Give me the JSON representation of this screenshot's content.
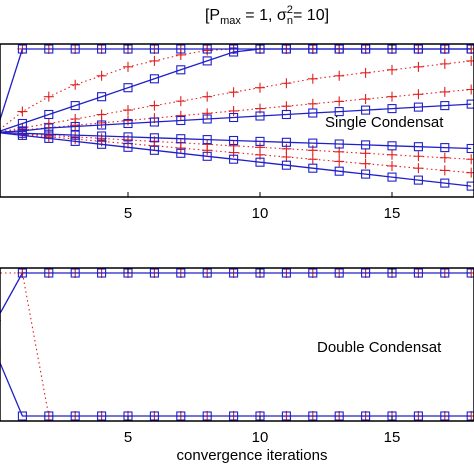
{
  "chart_data": [
    {
      "type": "line",
      "title_parts": {
        "open": "[P",
        "sub1": "max",
        "mid": " = 1, σ",
        "sup": "2",
        "sub2": "n",
        "close": "= 10]"
      },
      "annotation": "Single Condensat",
      "xlabel": "",
      "ylabel": "",
      "xticks": [
        5,
        10,
        15
      ],
      "xlim": [
        0,
        18
      ],
      "ylim": [
        0,
        1
      ],
      "grid": false,
      "series": [
        {
          "style": "blue-square-solid",
          "x": [
            0,
            1,
            2,
            3,
            4,
            5,
            6,
            7,
            8,
            9,
            10,
            11,
            12,
            13,
            14,
            15,
            16,
            17,
            18
          ],
          "y": [
            0.42,
            0.98,
            0.98,
            0.98,
            0.98,
            0.98,
            0.98,
            0.98,
            0.98,
            0.98,
            0.98,
            0.98,
            0.98,
            0.98,
            0.98,
            0.98,
            0.98,
            0.98,
            0.98
          ]
        },
        {
          "style": "blue-square-solid",
          "x": [
            0,
            1,
            2,
            3,
            4,
            5,
            6,
            7,
            8,
            9,
            10,
            11,
            12,
            13,
            14,
            15,
            16,
            17,
            18
          ],
          "y": [
            0.42,
            0.48,
            0.54,
            0.6,
            0.66,
            0.72,
            0.78,
            0.84,
            0.9,
            0.96,
            0.98,
            0.98,
            0.98,
            0.98,
            0.98,
            0.98,
            0.98,
            0.98,
            0.98
          ]
        },
        {
          "style": "blue-square-solid",
          "x": [
            0,
            1,
            2,
            3,
            4,
            5,
            6,
            7,
            8,
            9,
            10,
            11,
            12,
            13,
            14,
            15,
            16,
            17,
            18
          ],
          "y": [
            0.42,
            0.43,
            0.45,
            0.46,
            0.47,
            0.48,
            0.49,
            0.5,
            0.51,
            0.52,
            0.53,
            0.54,
            0.55,
            0.56,
            0.57,
            0.58,
            0.59,
            0.6,
            0.61
          ]
        },
        {
          "style": "blue-square-solid",
          "x": [
            0,
            1,
            2,
            3,
            4,
            5,
            6,
            7,
            8,
            9,
            10,
            11,
            12,
            13,
            14,
            15,
            16,
            17,
            18
          ],
          "y": [
            0.42,
            0.414,
            0.408,
            0.402,
            0.396,
            0.39,
            0.384,
            0.378,
            0.372,
            0.366,
            0.36,
            0.354,
            0.348,
            0.342,
            0.336,
            0.33,
            0.324,
            0.318,
            0.312
          ]
        },
        {
          "style": "blue-square-solid",
          "x": [
            0,
            1,
            2,
            3,
            4,
            5,
            6,
            7,
            8,
            9,
            10,
            11,
            12,
            13,
            14,
            15,
            16,
            17,
            18
          ],
          "y": [
            0.42,
            0.4,
            0.38,
            0.36,
            0.34,
            0.32,
            0.3,
            0.28,
            0.26,
            0.24,
            0.22,
            0.2,
            0.18,
            0.16,
            0.14,
            0.12,
            0.1,
            0.08,
            0.06
          ]
        },
        {
          "style": "red-plus-dotted",
          "x": [
            0,
            1,
            2,
            3,
            4,
            5,
            6,
            7,
            8,
            9,
            10,
            11,
            12,
            13,
            14,
            15,
            16,
            17,
            18
          ],
          "y": [
            0.42,
            0.98,
            0.98,
            0.98,
            0.98,
            0.98,
            0.98,
            0.98,
            0.98,
            0.98,
            0.98,
            0.98,
            0.98,
            0.98,
            0.98,
            0.98,
            0.98,
            0.98,
            0.98
          ]
        },
        {
          "style": "red-plus-dotted",
          "x": [
            0,
            1,
            2,
            3,
            4,
            5,
            6,
            7,
            8,
            9,
            10,
            11,
            12,
            13,
            14,
            15,
            16,
            17,
            18
          ],
          "y": [
            0.42,
            0.56,
            0.66,
            0.74,
            0.8,
            0.86,
            0.9,
            0.94,
            0.97,
            0.98,
            0.98,
            0.98,
            0.98,
            0.98,
            0.98,
            0.98,
            0.98,
            0.98,
            0.98
          ]
        },
        {
          "style": "red-plus-dotted",
          "x": [
            0,
            1,
            2,
            3,
            4,
            5,
            6,
            7,
            8,
            9,
            10,
            11,
            12,
            13,
            14,
            15,
            16,
            17,
            18
          ],
          "y": [
            0.42,
            0.45,
            0.48,
            0.51,
            0.54,
            0.57,
            0.6,
            0.63,
            0.66,
            0.69,
            0.72,
            0.75,
            0.78,
            0.8,
            0.82,
            0.84,
            0.86,
            0.88,
            0.9
          ]
        },
        {
          "style": "red-plus-dotted",
          "x": [
            0,
            1,
            2,
            3,
            4,
            5,
            6,
            7,
            8,
            9,
            10,
            11,
            12,
            13,
            14,
            15,
            16,
            17,
            18
          ],
          "y": [
            0.42,
            0.436,
            0.452,
            0.468,
            0.484,
            0.5,
            0.516,
            0.532,
            0.548,
            0.564,
            0.58,
            0.596,
            0.612,
            0.628,
            0.644,
            0.66,
            0.676,
            0.692,
            0.708
          ]
        },
        {
          "style": "red-plus-dotted",
          "x": [
            0,
            1,
            2,
            3,
            4,
            5,
            6,
            7,
            8,
            9,
            10,
            11,
            12,
            13,
            14,
            15,
            16,
            17,
            18
          ],
          "y": [
            0.42,
            0.41,
            0.4,
            0.39,
            0.38,
            0.37,
            0.36,
            0.35,
            0.34,
            0.33,
            0.32,
            0.31,
            0.3,
            0.29,
            0.28,
            0.27,
            0.26,
            0.25,
            0.24
          ]
        },
        {
          "style": "red-plus-dotted",
          "x": [
            0,
            1,
            2,
            3,
            4,
            5,
            6,
            7,
            8,
            9,
            10,
            11,
            12,
            13,
            14,
            15,
            16,
            17,
            18
          ],
          "y": [
            0.42,
            0.405,
            0.39,
            0.375,
            0.36,
            0.345,
            0.33,
            0.315,
            0.3,
            0.285,
            0.27,
            0.255,
            0.24,
            0.225,
            0.21,
            0.195,
            0.18,
            0.165,
            0.15
          ]
        }
      ]
    },
    {
      "type": "line",
      "annotation": "Double Condensat",
      "xlabel": "convergence iterations",
      "ylabel": "",
      "xticks": [
        5,
        10,
        15
      ],
      "xlim": [
        0,
        18
      ],
      "ylim": [
        0,
        1
      ],
      "grid": false,
      "series": [
        {
          "style": "blue-square-solid",
          "x": [
            0,
            1,
            2,
            3,
            4,
            5,
            6,
            7,
            8,
            9,
            10,
            11,
            12,
            13,
            14,
            15,
            16,
            17,
            18
          ],
          "y": [
            0.66,
            0.98,
            0.98,
            0.98,
            0.98,
            0.98,
            0.98,
            0.98,
            0.98,
            0.98,
            0.98,
            0.98,
            0.98,
            0.98,
            0.98,
            0.98,
            0.98,
            0.98,
            0.98
          ]
        },
        {
          "style": "blue-square-solid",
          "x": [
            0,
            1,
            2,
            3,
            4,
            5,
            6,
            7,
            8,
            9,
            10,
            11,
            12,
            13,
            14,
            15,
            16,
            17,
            18
          ],
          "y": [
            0.44,
            0.02,
            0.02,
            0.02,
            0.02,
            0.02,
            0.02,
            0.02,
            0.02,
            0.02,
            0.02,
            0.02,
            0.02,
            0.02,
            0.02,
            0.02,
            0.02,
            0.02,
            0.02
          ]
        },
        {
          "style": "red-plus-dotted",
          "x": [
            0,
            1,
            2,
            3,
            4,
            5,
            6,
            7,
            8,
            9,
            10,
            11,
            12,
            13,
            14,
            15,
            16,
            17,
            18
          ],
          "y": [
            0.66,
            0.98,
            0.98,
            0.98,
            0.98,
            0.98,
            0.98,
            0.98,
            0.98,
            0.98,
            0.98,
            0.98,
            0.98,
            0.98,
            0.98,
            0.98,
            0.98,
            0.98,
            0.98
          ]
        },
        {
          "style": "red-plus-dotted",
          "x": [
            0,
            1,
            2,
            3,
            4,
            5,
            6,
            7,
            8,
            9,
            10,
            11,
            12,
            13,
            14,
            15,
            16,
            17,
            18
          ],
          "y": [
            0.98,
            0.98,
            0.02,
            0.02,
            0.02,
            0.02,
            0.02,
            0.02,
            0.02,
            0.02,
            0.02,
            0.02,
            0.02,
            0.02,
            0.02,
            0.02,
            0.02,
            0.02,
            0.02
          ]
        }
      ]
    }
  ],
  "colors": {
    "blue": "#2020c8",
    "red": "#e02020",
    "axis": "#000000"
  }
}
